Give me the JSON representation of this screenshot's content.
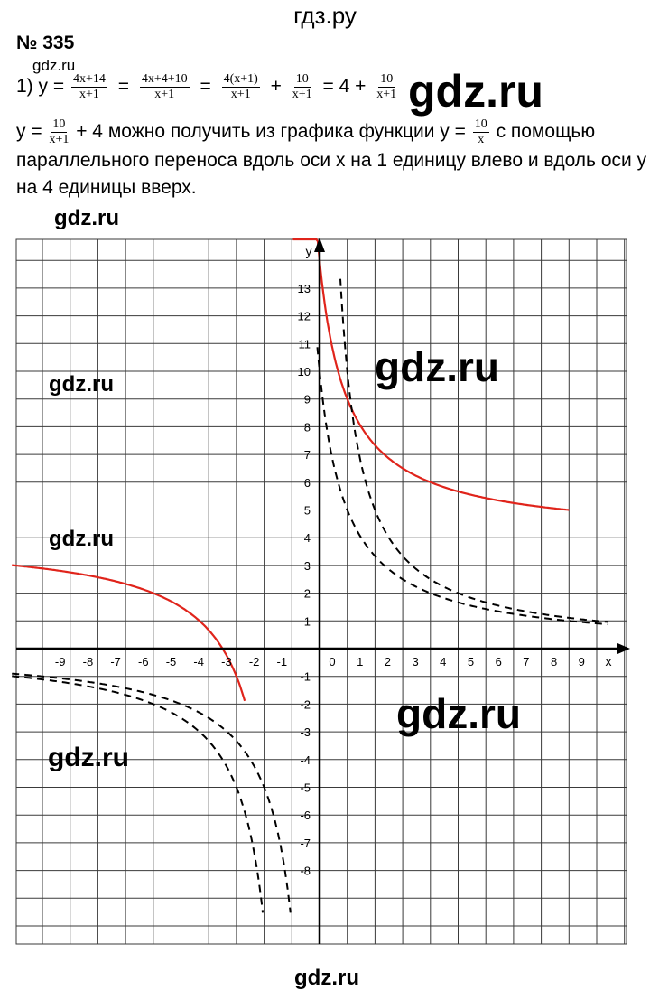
{
  "header": {
    "site": "гдз.ру"
  },
  "problem": {
    "number": "№ 335",
    "item": "1)",
    "y_eq": "y =",
    "f1_num": "4x+14",
    "f1_den": "x+1",
    "f2_num": "4x+4+10",
    "f2_den": "x+1",
    "f3_num": "4(x+1)",
    "f3_den": "x+1",
    "f4_num": "10",
    "f4_den": "x+1",
    "f5_num": "10",
    "f5_den": "x+1",
    "eq": "=",
    "plus": "+",
    "four_eq": "= 4 +",
    "text_y_eq": "y =",
    "t1_num": "10",
    "t1_den": "x+1",
    "text_part1": "+ 4 можно получить из графика функции y =",
    "t2_num": "10",
    "t2_den": "x",
    "text_part2": "с помощью",
    "text_line2": "параллельного переноса вдоль оси x на 1 единицу влево и вдоль оси y",
    "text_line3": "на 4 единицы вверх."
  },
  "watermarks": [
    "gdz.ru",
    "gdz.ru",
    "gdz.ru",
    "gdz.ru",
    "gdz.ru",
    "gdz.ru",
    "gdz.ru",
    "gdz.ru"
  ],
  "chart_data": {
    "type": "line",
    "x_axis_label": "x",
    "y_axis_label": "y",
    "x_ticks": [
      "-9",
      "-8",
      "-7",
      "-6",
      "-5",
      "-4",
      "-3",
      "-2",
      "-1",
      "0",
      "1",
      "2",
      "3",
      "4",
      "5",
      "6",
      "7",
      "8",
      "9"
    ],
    "y_ticks": [
      "13",
      "12",
      "11",
      "10",
      "9",
      "8",
      "7",
      "6",
      "5",
      "4",
      "3",
      "2",
      "1",
      "-1",
      "-2",
      "-3",
      "-4",
      "-5",
      "-6",
      "-7",
      "-8"
    ],
    "xlim": [
      -11.1,
      10.4
    ],
    "ylim": [
      -10,
      14.2
    ],
    "grid": true,
    "series": [
      {
        "formula": "y = 10/(x+1) + 4",
        "color": "#e0241b",
        "dash": false,
        "branches": [
          {
            "x": [
              -0.96,
              9
            ]
          },
          {
            "x": [
              -11.1,
              -2.7
            ]
          }
        ]
      },
      {
        "formula": "y = 10/x",
        "color": "#000000",
        "dash": true,
        "branches": [
          {
            "x": [
              0.75,
              10.4
            ]
          },
          {
            "x": [
              -11.1,
              -1.05
            ]
          }
        ]
      },
      {
        "formula": "y = 10/(x+1)",
        "color": "#000000",
        "dash": true,
        "branches": [
          {
            "x": [
              -0.08,
              10.4
            ]
          },
          {
            "x": [
              -11.1,
              -2.05
            ]
          }
        ]
      }
    ]
  }
}
